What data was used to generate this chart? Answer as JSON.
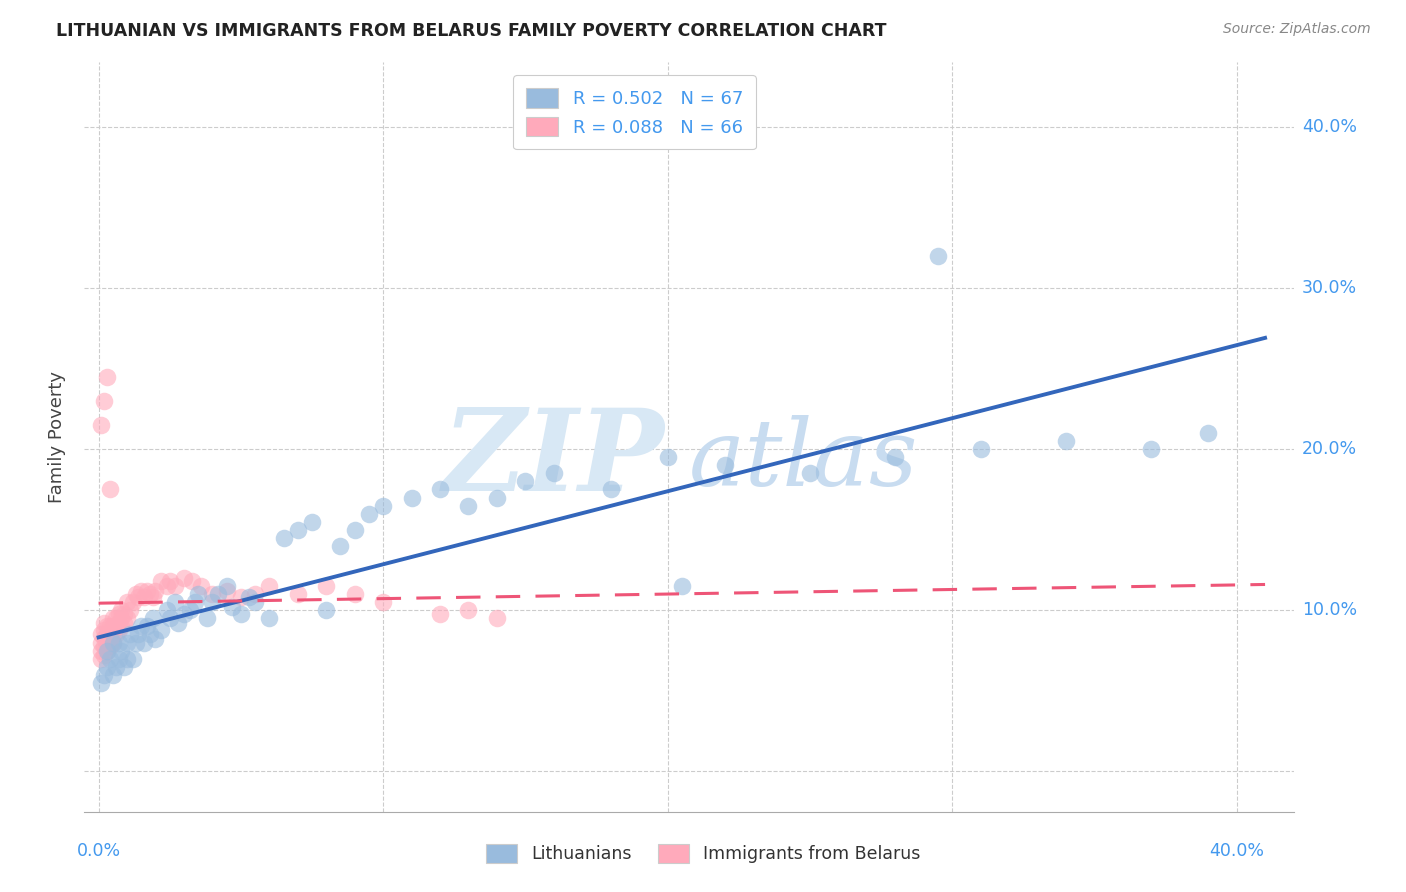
{
  "title": "LITHUANIAN VS IMMIGRANTS FROM BELARUS FAMILY POVERTY CORRELATION CHART",
  "source": "Source: ZipAtlas.com",
  "ylabel": "Family Poverty",
  "xlim": [
    -0.005,
    0.42
  ],
  "ylim": [
    -0.025,
    0.44
  ],
  "legend_R1": "R = 0.502",
  "legend_N1": "N = 67",
  "legend_R2": "R = 0.088",
  "legend_N2": "N = 66",
  "color_blue": "#99BBDD",
  "color_pink": "#FFAABB",
  "color_line_blue": "#3366BB",
  "color_line_pink": "#EE5577",
  "blue_trend_x0": 0.0,
  "blue_trend_y0": 0.072,
  "blue_trend_x1": 0.4,
  "blue_trend_y1": 0.215,
  "pink_trend_x0": 0.0,
  "pink_trend_y0": 0.09,
  "pink_trend_x1": 0.16,
  "pink_trend_y1": 0.132,
  "blue_x": [
    0.001,
    0.002,
    0.003,
    0.003,
    0.004,
    0.005,
    0.005,
    0.006,
    0.007,
    0.007,
    0.008,
    0.009,
    0.01,
    0.01,
    0.011,
    0.012,
    0.013,
    0.014,
    0.015,
    0.016,
    0.017,
    0.018,
    0.019,
    0.02,
    0.022,
    0.024,
    0.025,
    0.027,
    0.028,
    0.03,
    0.032,
    0.034,
    0.035,
    0.038,
    0.04,
    0.042,
    0.045,
    0.047,
    0.05,
    0.053,
    0.055,
    0.06,
    0.065,
    0.07,
    0.075,
    0.08,
    0.085,
    0.09,
    0.095,
    0.1,
    0.11,
    0.12,
    0.13,
    0.14,
    0.15,
    0.16,
    0.18,
    0.2,
    0.22,
    0.25,
    0.28,
    0.31,
    0.34,
    0.37,
    0.39,
    0.205,
    0.295
  ],
  "blue_y": [
    0.055,
    0.06,
    0.065,
    0.075,
    0.07,
    0.06,
    0.08,
    0.065,
    0.07,
    0.08,
    0.075,
    0.065,
    0.07,
    0.08,
    0.085,
    0.07,
    0.08,
    0.085,
    0.09,
    0.08,
    0.09,
    0.085,
    0.095,
    0.082,
    0.088,
    0.1,
    0.095,
    0.105,
    0.092,
    0.098,
    0.1,
    0.105,
    0.11,
    0.095,
    0.105,
    0.11,
    0.115,
    0.102,
    0.098,
    0.108,
    0.105,
    0.095,
    0.145,
    0.15,
    0.155,
    0.1,
    0.14,
    0.15,
    0.16,
    0.165,
    0.17,
    0.175,
    0.165,
    0.17,
    0.18,
    0.185,
    0.175,
    0.195,
    0.19,
    0.185,
    0.195,
    0.2,
    0.205,
    0.2,
    0.21,
    0.115,
    0.32
  ],
  "pink_x": [
    0.001,
    0.001,
    0.001,
    0.001,
    0.002,
    0.002,
    0.002,
    0.002,
    0.002,
    0.003,
    0.003,
    0.003,
    0.003,
    0.004,
    0.004,
    0.004,
    0.005,
    0.005,
    0.005,
    0.005,
    0.006,
    0.006,
    0.006,
    0.007,
    0.007,
    0.007,
    0.008,
    0.008,
    0.008,
    0.009,
    0.009,
    0.01,
    0.01,
    0.011,
    0.012,
    0.013,
    0.014,
    0.015,
    0.016,
    0.017,
    0.018,
    0.019,
    0.02,
    0.022,
    0.024,
    0.025,
    0.027,
    0.03,
    0.033,
    0.036,
    0.04,
    0.045,
    0.05,
    0.055,
    0.06,
    0.07,
    0.08,
    0.09,
    0.1,
    0.12,
    0.13,
    0.14,
    0.001,
    0.002,
    0.003,
    0.004
  ],
  "pink_y": [
    0.07,
    0.075,
    0.08,
    0.085,
    0.072,
    0.078,
    0.083,
    0.088,
    0.092,
    0.075,
    0.08,
    0.085,
    0.09,
    0.078,
    0.083,
    0.09,
    0.08,
    0.085,
    0.09,
    0.095,
    0.085,
    0.09,
    0.095,
    0.088,
    0.092,
    0.098,
    0.09,
    0.095,
    0.1,
    0.092,
    0.098,
    0.095,
    0.105,
    0.1,
    0.105,
    0.11,
    0.108,
    0.112,
    0.108,
    0.112,
    0.11,
    0.108,
    0.112,
    0.118,
    0.115,
    0.118,
    0.115,
    0.12,
    0.118,
    0.115,
    0.11,
    0.112,
    0.108,
    0.11,
    0.115,
    0.11,
    0.115,
    0.11,
    0.105,
    0.098,
    0.1,
    0.095,
    0.215,
    0.23,
    0.245,
    0.175
  ]
}
